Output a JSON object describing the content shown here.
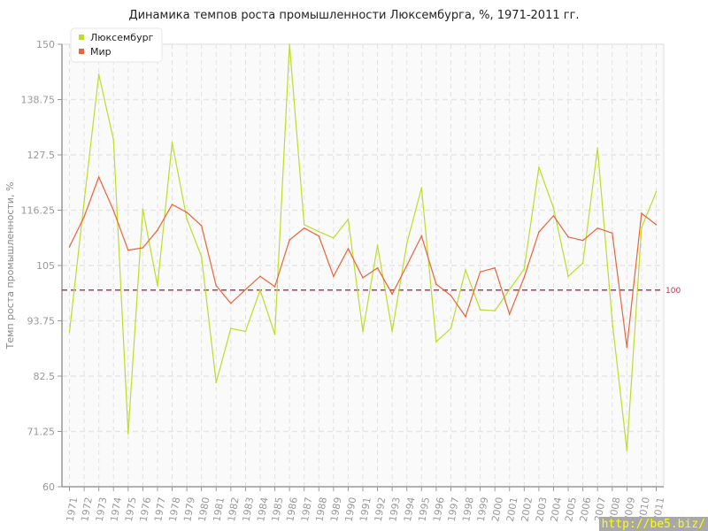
{
  "chart_data": {
    "type": "line",
    "title": "Динамика темпов роста промышленности Люксембурга, %, 1971-2011 гг.",
    "ylabel": "Темп роста промышленности, %",
    "xlabel": "",
    "ylim": [
      60,
      150
    ],
    "yticks": [
      "60",
      "71.25",
      "82.5",
      "93.75",
      "105",
      "116.25",
      "127.5",
      "138.75",
      "150"
    ],
    "grid": true,
    "legend_position": "top-left",
    "x": [
      1971,
      1972,
      1973,
      1974,
      1975,
      1976,
      1977,
      1978,
      1979,
      1980,
      1981,
      1982,
      1983,
      1984,
      1985,
      1986,
      1987,
      1988,
      1989,
      1990,
      1991,
      1992,
      1993,
      1994,
      1995,
      1996,
      1997,
      1998,
      1999,
      2000,
      2001,
      2002,
      2003,
      2004,
      2005,
      2006,
      2007,
      2008,
      2009,
      2010,
      2011
    ],
    "series": [
      {
        "name": "Люксембург",
        "color": "#bedd2a",
        "values": [
          91.5,
          118,
          143.9,
          130.6,
          70.8,
          116.5,
          100.9,
          130,
          114.5,
          106.8,
          81.2,
          92.2,
          91.6,
          100,
          91,
          150,
          113.3,
          111.9,
          110.6,
          114.4,
          91.6,
          109.1,
          91.6,
          109.5,
          120.8,
          89.5,
          92.2,
          104.1,
          96,
          95.8,
          100.1,
          104.3,
          125,
          116.7,
          102.8,
          105.5,
          128.9,
          93.7,
          67.4,
          112.7,
          120
        ]
      },
      {
        "name": "Мир",
        "color": "#e8643a",
        "values": [
          108.8,
          114.9,
          123,
          116.2,
          108.1,
          108.6,
          112.2,
          117.4,
          115.8,
          113.1,
          100.9,
          97.3,
          100.1,
          102.8,
          100.7,
          110.2,
          112.6,
          111,
          102.8,
          108.4,
          102.5,
          104.5,
          99.2,
          105,
          111,
          101.2,
          98.9,
          94.6,
          103.7,
          104.5,
          95.1,
          102.6,
          111.8,
          115.1,
          110.8,
          110.1,
          112.6,
          111.6,
          88.4,
          115.6,
          113.3
        ]
      }
    ],
    "reference_line": {
      "value": 100,
      "label": "100",
      "color": "#b03a55"
    }
  },
  "watermark": "http://be5.biz/"
}
